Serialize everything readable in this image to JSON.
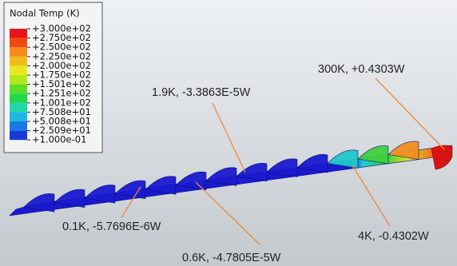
{
  "legend": {
    "title": "Nodal Temp (K)",
    "labels": [
      "+3.000e+02",
      "+2.750e+02",
      "+2.500e+02",
      "+2.250e+02",
      "+2.000e+02",
      "+1.750e+02",
      "+1.501e+02",
      "+1.251e+02",
      "+1.001e+02",
      "+7.508e+01",
      "+5.008e+01",
      "+2.509e+01",
      "+1.000e-01"
    ]
  },
  "annotations": [
    {
      "text": "300K, +0.4303W"
    },
    {
      "text": "1.9K, -3.3863E-5W"
    },
    {
      "text": "0.1K, -5.7696E-6W"
    },
    {
      "text": "0.6K, -4.7805E-5W"
    },
    {
      "text": "4K, -0.4302W"
    }
  ]
}
